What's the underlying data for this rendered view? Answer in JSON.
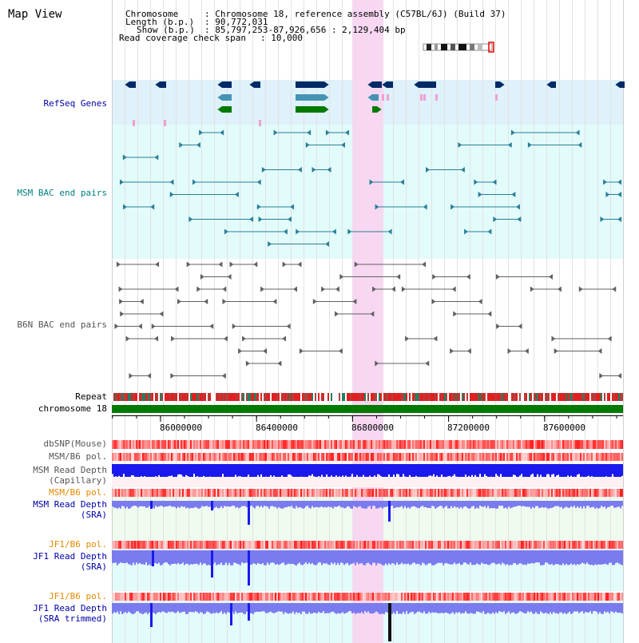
{
  "title": "Map View",
  "header": {
    "chromosome_key": "Chromosome",
    "chromosome_val": ": Chromosome 18, reference assembly (C57BL/6J) (Build 37)",
    "length_key": "Length (b.p.)",
    "length_val": ": 90,772,031",
    "show_key": "Show (b.p.)",
    "show_val": ": 85,797,253-87,926,656 : 2,129,404 bp",
    "coverage_key": "Read coverage check span",
    "coverage_val": ": 10,000"
  },
  "tracks": {
    "refseq": "RefSeq Genes",
    "msm_bac": "MSM BAC end pairs",
    "b6n_bac": "B6N BAC end pairs",
    "repeat": "Repeat",
    "chromosome": "chromosome 18",
    "dbsnp": "dbSNP(Mouse)",
    "msm_b6_pol_1": "MSM/B6 pol.",
    "msm_depth_cap_1": "MSM Read Depth",
    "msm_depth_cap_2": "(Capillary)",
    "msm_b6_pol_2": "MSM/B6 pol.",
    "msm_depth_sra_1": "MSM Read Depth",
    "msm_depth_sra_2": "(SRA)",
    "jf1_b6_pol_1": "JF1/B6 pol.",
    "jf1_depth_sra_1": "JF1 Read Depth",
    "jf1_depth_sra_2": "(SRA)",
    "jf1_b6_pol_2": "JF1/B6 pol.",
    "jf1_depth_trim_1": "JF1 Read Depth",
    "jf1_depth_trim_2": "(SRA trimmed)"
  },
  "axis": {
    "start_bp": 85797253,
    "end_bp": 87926656,
    "ticks": [
      "86000000",
      "86400000",
      "86800000",
      "87200000",
      "87600000"
    ]
  },
  "highlight": {
    "start_bp": 86800000,
    "end_bp": 86930000
  },
  "colors": {
    "highlight": "#f9d7f3",
    "refseq_bg": "#dff1fb",
    "msm_bg": "#e2fbfb",
    "gene_navy": "#002a66",
    "gene_teal": "#4593b3",
    "gene_green": "#007a00",
    "bac_teal": "#2a7e98",
    "bac_gray": "#606060",
    "label_navy": "#0000a8",
    "label_teal": "#008080",
    "label_orange": "#e68a00",
    "chrom_green": "#007a00",
    "depth_blue": "#1a1aee",
    "depth_light": "#7b7bf0"
  }
}
